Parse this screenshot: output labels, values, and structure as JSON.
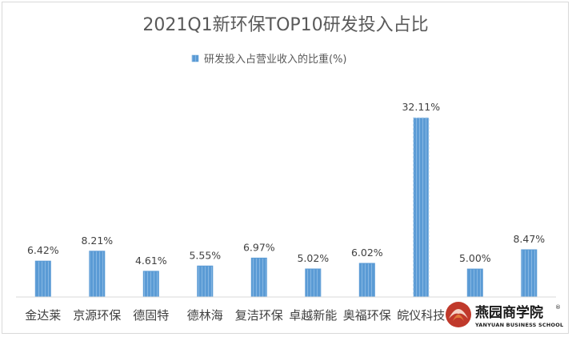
{
  "chart_data": {
    "type": "bar",
    "title": "2021Q1新环保TOP10研发投入占比",
    "categories": [
      "金达莱",
      "京源环保",
      "德固特",
      "德林海",
      "复洁环保",
      "卓越新能",
      "奥福环保",
      "皖仪科技",
      "",
      ""
    ],
    "series": [
      {
        "name": "研发投入占营业收入的比重(%)",
        "values": [
          6.42,
          8.21,
          4.61,
          5.55,
          6.97,
          5.02,
          6.02,
          32.11,
          5.0,
          8.47
        ],
        "labels": [
          "6.42%",
          "8.21%",
          "4.61%",
          "5.55%",
          "6.97%",
          "5.02%",
          "6.02%",
          "32.11%",
          "5.00%",
          "8.47%"
        ],
        "color": "#5b9bd5"
      }
    ],
    "legend_position": "top-center",
    "grid": false,
    "ylim": [
      0,
      34
    ]
  },
  "watermark": {
    "name_cn": "燕园商学院",
    "name_en": "YANYUAN BUSINESS SCHOOL",
    "reg_mark": "®"
  }
}
